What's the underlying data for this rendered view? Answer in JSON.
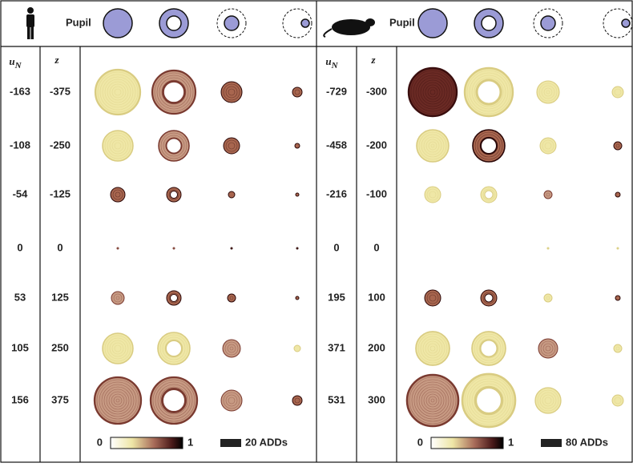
{
  "panels": [
    {
      "pupil_label": "Pupil",
      "col_headers": {
        "u": "u",
        "u_sub": "N",
        "z": "z"
      },
      "rows": [
        {
          "u_n": -163,
          "z": -375
        },
        {
          "u_n": -108,
          "z": -250
        },
        {
          "u_n": -54,
          "z": -125
        },
        {
          "u_n": 0,
          "z": 0
        },
        {
          "u_n": 53,
          "z": 125
        },
        {
          "u_n": 105,
          "z": 250
        },
        {
          "u_n": 156,
          "z": 375
        }
      ],
      "colorbar": {
        "min": 0,
        "max": 1
      },
      "scale_bar": "20 ADDs"
    },
    {
      "pupil_label": "Pupil",
      "col_headers": {
        "u": "u",
        "u_sub": "N",
        "z": "z"
      },
      "rows": [
        {
          "u_n": -729,
          "z": -300
        },
        {
          "u_n": -458,
          "z": -200
        },
        {
          "u_n": -216,
          "z": -100
        },
        {
          "u_n": 0,
          "z": 0
        },
        {
          "u_n": 195,
          "z": 100
        },
        {
          "u_n": 371,
          "z": 200
        },
        {
          "u_n": 531,
          "z": 300
        }
      ],
      "colorbar": {
        "min": 0,
        "max": 1
      },
      "scale_bar": "80 ADDs"
    }
  ]
}
